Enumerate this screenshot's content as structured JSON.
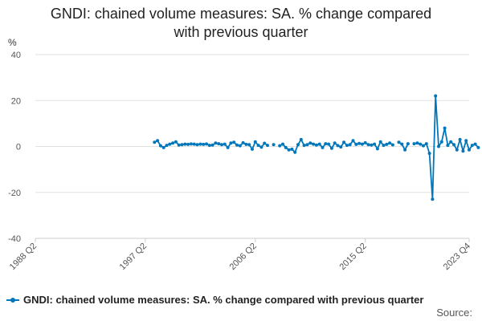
{
  "chart_data": {
    "type": "line",
    "title_line1": "GNDI: chained volume measures: SA. % change compared",
    "title_line2": "with previous quarter",
    "ylabel": "%",
    "ylim": [
      -40,
      40
    ],
    "yticks": [
      40,
      20,
      0,
      -20,
      -40
    ],
    "xlim": [
      "1988 Q2",
      "2023 Q4"
    ],
    "xticks": [
      "1988 Q2",
      "1997 Q2",
      "2006 Q2",
      "2015 Q2",
      "2023 Q4"
    ],
    "legend_position": "bottom",
    "grid": true,
    "series": [
      {
        "name": "GNDI: chained volume measures: SA. % change compared with previous quarter",
        "color": "#0077bb",
        "start_period": "1998 Q1",
        "values": [
          1.8,
          2.5,
          0.3,
          -0.5,
          0.5,
          1.0,
          1.5,
          2.0,
          0.6,
          0.8,
          1.0,
          0.9,
          1.1,
          1.0,
          0.8,
          1.0,
          0.9,
          1.1,
          0.5,
          0.6,
          1.5,
          1.2,
          0.8,
          1.0,
          -0.5,
          1.5,
          1.8,
          0.6,
          0.3,
          1.6,
          0.9,
          0.8,
          -1.2,
          2.0,
          0.5,
          -0.3,
          1.4,
          0.5,
          null,
          0.8,
          null,
          0.3,
          1.0,
          -0.5,
          -1.5,
          -1.2,
          -2.5,
          0.8,
          3.0,
          0.5,
          0.8,
          1.5,
          1.0,
          0.6,
          1.0,
          -0.5,
          1.2,
          1.0,
          -0.8,
          1.5,
          0.4,
          -0.2,
          1.8,
          0.5,
          0.8,
          2.5,
          0.9,
          1.3,
          1.0,
          1.6,
          0.8,
          0.6,
          1.0,
          -1.0,
          2.0,
          0.5,
          0.9,
          1.5,
          0.7,
          null,
          1.8,
          1.0,
          -1.5,
          1.2,
          null,
          1.2,
          1.5,
          1.0,
          0.3,
          1.2,
          -3.0,
          -23.0,
          22.0,
          0.0,
          2.0,
          8.0,
          0.5,
          2.0,
          0.8,
          -1.5,
          3.0,
          -2.0,
          2.5,
          -1.5,
          0.5,
          1.0,
          -0.5
        ]
      }
    ]
  },
  "source_label": "Source: "
}
